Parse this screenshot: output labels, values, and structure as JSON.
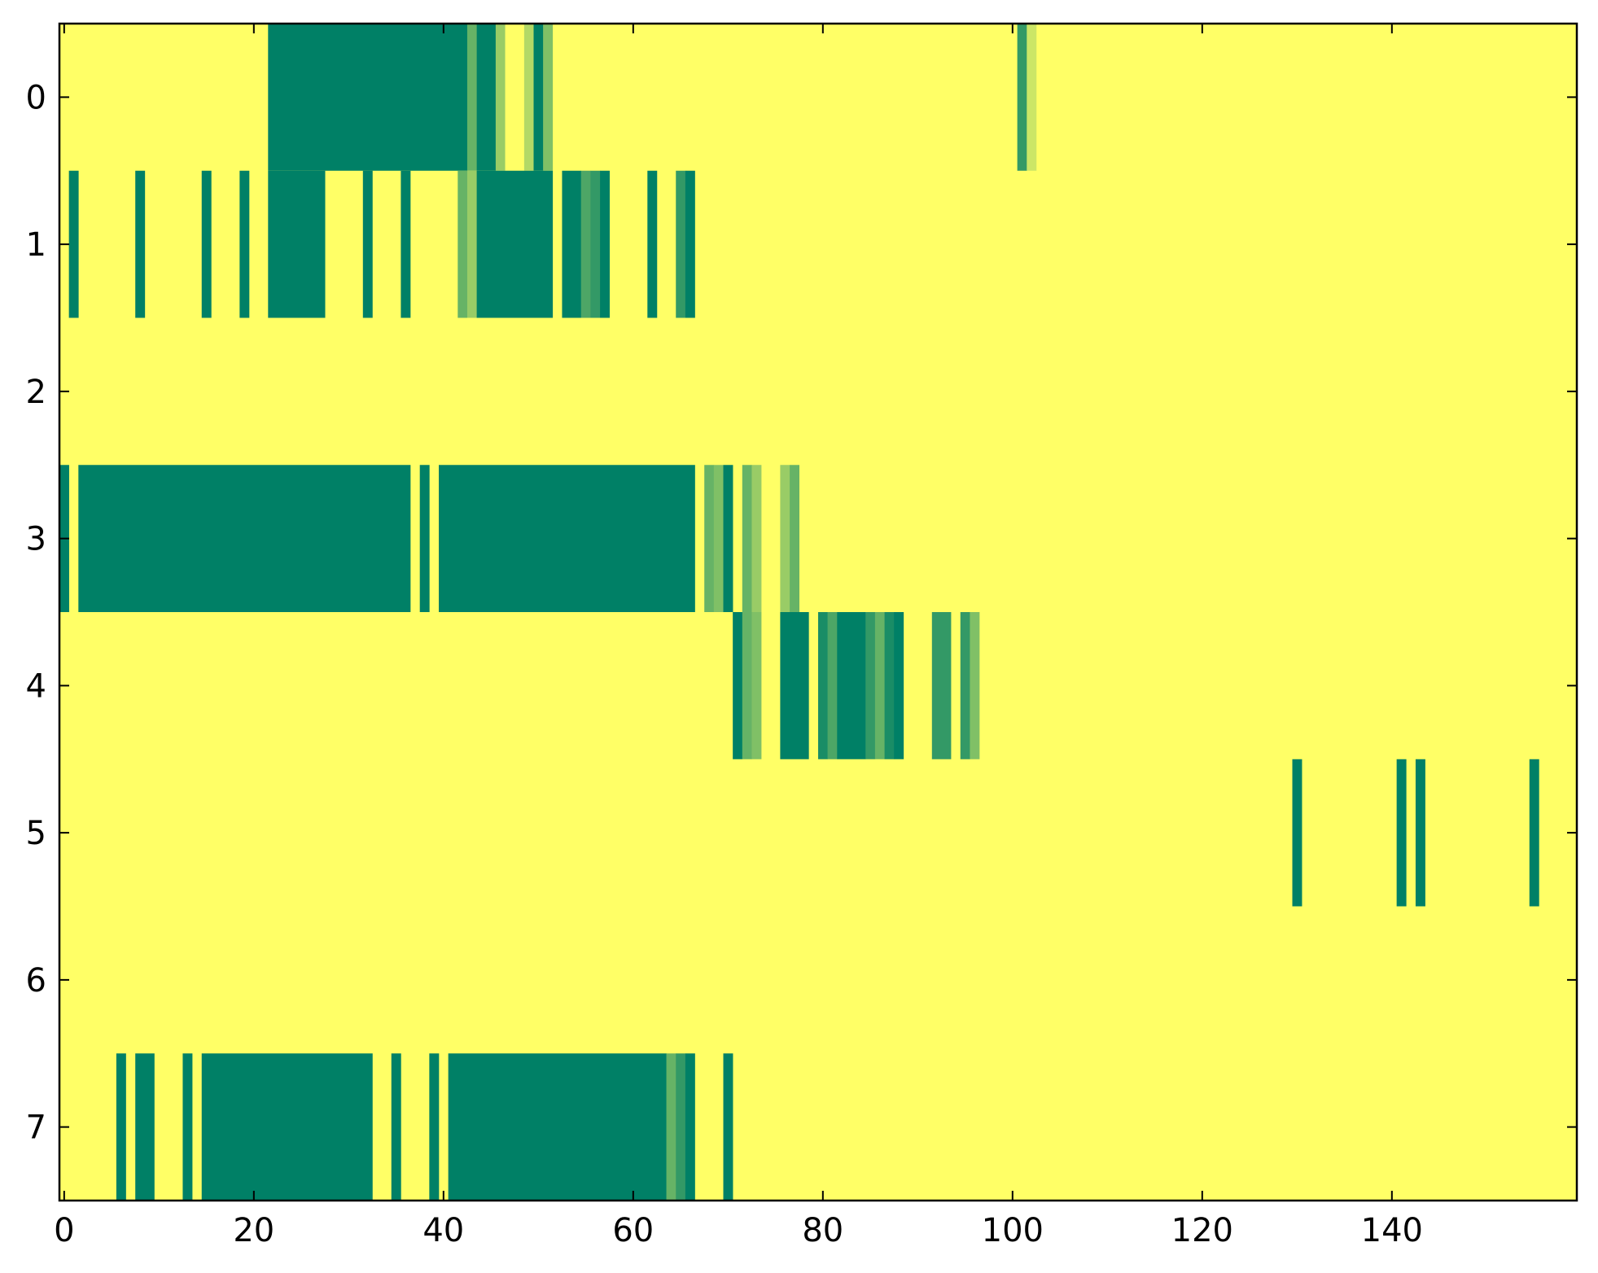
{
  "chart_data": {
    "type": "heatmap",
    "colormap": {
      "low": "#ffff66",
      "high": "#008066",
      "scale_name": "summer_r"
    },
    "x_range": [
      -0.5,
      159.5
    ],
    "y_range": [
      -0.5,
      7.5
    ],
    "y_inverted": true,
    "x_ticks": [
      0,
      20,
      40,
      60,
      80,
      100,
      120,
      140
    ],
    "x_tick_labels": [
      "0",
      "20",
      "40",
      "60",
      "80",
      "100",
      "120",
      "140"
    ],
    "y_ticks": [
      0,
      1,
      2,
      3,
      4,
      5,
      6,
      7
    ],
    "y_tick_labels": [
      "0",
      "1",
      "2",
      "3",
      "4",
      "5",
      "6",
      "7"
    ],
    "grid": false,
    "legend": "none",
    "background_value": 0,
    "cells_note_format": "[row, column_start, column_end_inclusive, value 0-1]",
    "cells": [
      [
        0,
        22,
        42,
        1.0
      ],
      [
        0,
        43,
        43,
        0.6
      ],
      [
        0,
        44,
        45,
        1.0
      ],
      [
        0,
        46,
        46,
        0.4
      ],
      [
        0,
        47,
        48,
        0.0
      ],
      [
        0,
        49,
        49,
        0.3
      ],
      [
        0,
        50,
        50,
        1.0
      ],
      [
        0,
        51,
        51,
        0.5
      ],
      [
        0,
        101,
        101,
        0.8
      ],
      [
        0,
        102,
        102,
        0.2
      ],
      [
        1,
        1,
        1,
        1.0
      ],
      [
        1,
        8,
        8,
        1.0
      ],
      [
        1,
        15,
        15,
        1.0
      ],
      [
        1,
        19,
        19,
        1.0
      ],
      [
        1,
        22,
        27,
        1.0
      ],
      [
        1,
        32,
        32,
        1.0
      ],
      [
        1,
        36,
        36,
        1.0
      ],
      [
        1,
        42,
        42,
        0.6
      ],
      [
        1,
        43,
        43,
        0.4
      ],
      [
        1,
        44,
        51,
        1.0
      ],
      [
        1,
        53,
        54,
        1.0
      ],
      [
        1,
        55,
        55,
        0.7
      ],
      [
        1,
        56,
        56,
        0.8
      ],
      [
        1,
        57,
        57,
        1.0
      ],
      [
        1,
        62,
        62,
        1.0
      ],
      [
        1,
        65,
        65,
        0.8
      ],
      [
        1,
        66,
        66,
        1.0
      ],
      [
        3,
        0,
        0,
        1.0
      ],
      [
        3,
        2,
        36,
        1.0
      ],
      [
        3,
        38,
        38,
        1.0
      ],
      [
        3,
        40,
        66,
        1.0
      ],
      [
        3,
        68,
        68,
        0.6
      ],
      [
        3,
        69,
        69,
        0.5
      ],
      [
        3,
        70,
        70,
        1.0
      ],
      [
        3,
        72,
        72,
        0.6
      ],
      [
        3,
        73,
        73,
        0.4
      ],
      [
        3,
        76,
        76,
        0.4
      ],
      [
        3,
        77,
        77,
        0.6
      ],
      [
        4,
        71,
        71,
        1.0
      ],
      [
        4,
        72,
        72,
        0.6
      ],
      [
        4,
        73,
        73,
        0.5
      ],
      [
        4,
        76,
        78,
        1.0
      ],
      [
        4,
        80,
        80,
        0.9
      ],
      [
        4,
        81,
        81,
        0.7
      ],
      [
        4,
        82,
        84,
        1.0
      ],
      [
        4,
        85,
        85,
        0.8
      ],
      [
        4,
        86,
        86,
        0.6
      ],
      [
        4,
        87,
        87,
        0.9
      ],
      [
        4,
        88,
        88,
        1.0
      ],
      [
        4,
        92,
        93,
        0.8
      ],
      [
        4,
        95,
        95,
        0.8
      ],
      [
        4,
        96,
        96,
        0.5
      ],
      [
        5,
        130,
        130,
        1.0
      ],
      [
        5,
        141,
        141,
        1.0
      ],
      [
        5,
        143,
        143,
        1.0
      ],
      [
        5,
        155,
        155,
        1.0
      ],
      [
        7,
        6,
        6,
        1.0
      ],
      [
        7,
        8,
        9,
        1.0
      ],
      [
        7,
        13,
        13,
        1.0
      ],
      [
        7,
        15,
        32,
        1.0
      ],
      [
        7,
        35,
        35,
        1.0
      ],
      [
        7,
        39,
        39,
        1.0
      ],
      [
        7,
        41,
        63,
        1.0
      ],
      [
        7,
        64,
        64,
        0.6
      ],
      [
        7,
        65,
        65,
        0.8
      ],
      [
        7,
        66,
        66,
        1.0
      ],
      [
        7,
        70,
        70,
        1.0
      ]
    ]
  }
}
